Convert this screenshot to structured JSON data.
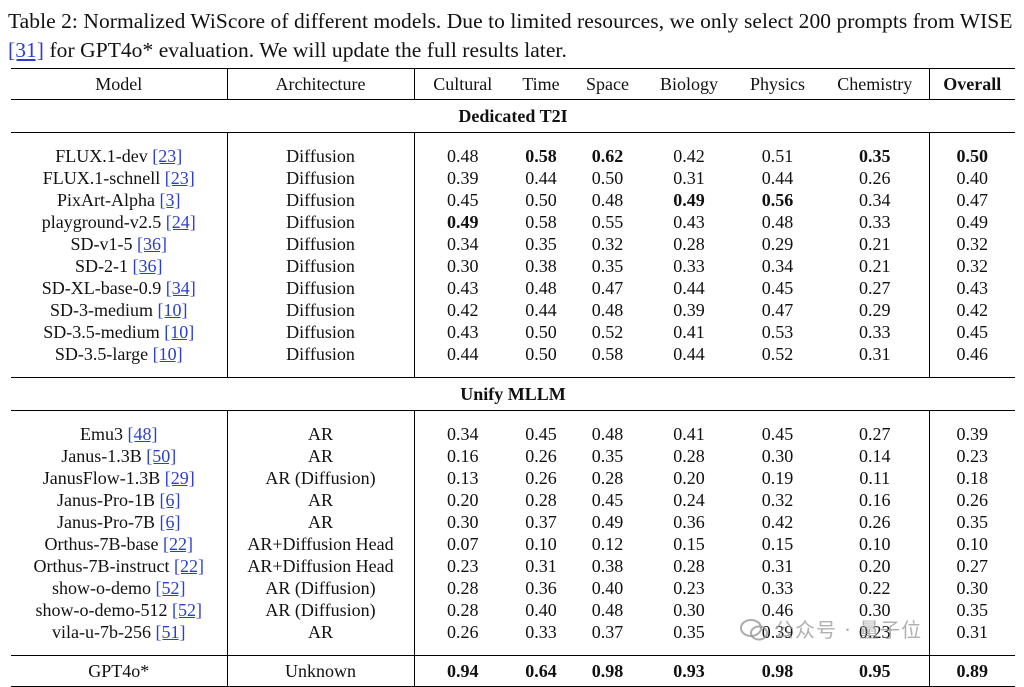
{
  "caption": {
    "label": "Table 2:",
    "text_before_ref": "Normalized WiScore of different models.  Due to limited resources, we only select 200 prompts from WISE",
    "ref": "[31]",
    "text_after_ref": "for GPT4o* evaluation. We will update the full results later."
  },
  "columns": [
    "Model",
    "Architecture",
    "Cultural",
    "Time",
    "Space",
    "Biology",
    "Physics",
    "Chemistry",
    "Overall"
  ],
  "sections": [
    {
      "title": "Dedicated T2I",
      "rows": [
        {
          "model": "FLUX.1-dev",
          "ref": "[23]",
          "arch": "Diffusion",
          "vals": [
            "0.48",
            "0.58",
            "0.62",
            "0.42",
            "0.51",
            "0.35",
            "0.50"
          ],
          "bold": [
            false,
            true,
            true,
            false,
            false,
            true,
            true
          ]
        },
        {
          "model": "FLUX.1-schnell",
          "ref": "[23]",
          "arch": "Diffusion",
          "vals": [
            "0.39",
            "0.44",
            "0.50",
            "0.31",
            "0.44",
            "0.26",
            "0.40"
          ],
          "bold": [
            false,
            false,
            false,
            false,
            false,
            false,
            false
          ]
        },
        {
          "model": "PixArt-Alpha",
          "ref": "[3]",
          "arch": "Diffusion",
          "vals": [
            "0.45",
            "0.50",
            "0.48",
            "0.49",
            "0.56",
            "0.34",
            "0.47"
          ],
          "bold": [
            false,
            false,
            false,
            true,
            true,
            false,
            false
          ]
        },
        {
          "model": "playground-v2.5",
          "ref": "[24]",
          "arch": "Diffusion",
          "vals": [
            "0.49",
            "0.58",
            "0.55",
            "0.43",
            "0.48",
            "0.33",
            "0.49"
          ],
          "bold": [
            true,
            false,
            false,
            false,
            false,
            false,
            false
          ]
        },
        {
          "model": "SD-v1-5",
          "ref": "[36]",
          "arch": "Diffusion",
          "vals": [
            "0.34",
            "0.35",
            "0.32",
            "0.28",
            "0.29",
            "0.21",
            "0.32"
          ],
          "bold": [
            false,
            false,
            false,
            false,
            false,
            false,
            false
          ]
        },
        {
          "model": "SD-2-1",
          "ref": "[36]",
          "arch": "Diffusion",
          "vals": [
            "0.30",
            "0.38",
            "0.35",
            "0.33",
            "0.34",
            "0.21",
            "0.32"
          ],
          "bold": [
            false,
            false,
            false,
            false,
            false,
            false,
            false
          ]
        },
        {
          "model": "SD-XL-base-0.9",
          "ref": "[34]",
          "arch": "Diffusion",
          "vals": [
            "0.43",
            "0.48",
            "0.47",
            "0.44",
            "0.45",
            "0.27",
            "0.43"
          ],
          "bold": [
            false,
            false,
            false,
            false,
            false,
            false,
            false
          ]
        },
        {
          "model": "SD-3-medium",
          "ref": "[10]",
          "arch": "Diffusion",
          "vals": [
            "0.42",
            "0.44",
            "0.48",
            "0.39",
            "0.47",
            "0.29",
            "0.42"
          ],
          "bold": [
            false,
            false,
            false,
            false,
            false,
            false,
            false
          ]
        },
        {
          "model": "SD-3.5-medium",
          "ref": "[10]",
          "arch": "Diffusion",
          "vals": [
            "0.43",
            "0.50",
            "0.52",
            "0.41",
            "0.53",
            "0.33",
            "0.45"
          ],
          "bold": [
            false,
            false,
            false,
            false,
            false,
            false,
            false
          ]
        },
        {
          "model": "SD-3.5-large",
          "ref": "[10]",
          "arch": "Diffusion",
          "vals": [
            "0.44",
            "0.50",
            "0.58",
            "0.44",
            "0.52",
            "0.31",
            "0.46"
          ],
          "bold": [
            false,
            false,
            false,
            false,
            false,
            false,
            false
          ]
        }
      ]
    },
    {
      "title": "Unify MLLM",
      "rows": [
        {
          "model": "Emu3",
          "ref": "[48]",
          "arch": "AR",
          "vals": [
            "0.34",
            "0.45",
            "0.48",
            "0.41",
            "0.45",
            "0.27",
            "0.39"
          ],
          "bold": [
            false,
            false,
            false,
            false,
            false,
            false,
            false
          ]
        },
        {
          "model": "Janus-1.3B",
          "ref": "[50]",
          "arch": "AR",
          "vals": [
            "0.16",
            "0.26",
            "0.35",
            "0.28",
            "0.30",
            "0.14",
            "0.23"
          ],
          "bold": [
            false,
            false,
            false,
            false,
            false,
            false,
            false
          ]
        },
        {
          "model": "JanusFlow-1.3B",
          "ref": "[29]",
          "arch": "AR (Diffusion)",
          "vals": [
            "0.13",
            "0.26",
            "0.28",
            "0.20",
            "0.19",
            "0.11",
            "0.18"
          ],
          "bold": [
            false,
            false,
            false,
            false,
            false,
            false,
            false
          ]
        },
        {
          "model": "Janus-Pro-1B",
          "ref": "[6]",
          "arch": "AR",
          "vals": [
            "0.20",
            "0.28",
            "0.45",
            "0.24",
            "0.32",
            "0.16",
            "0.26"
          ],
          "bold": [
            false,
            false,
            false,
            false,
            false,
            false,
            false
          ]
        },
        {
          "model": "Janus-Pro-7B",
          "ref": "[6]",
          "arch": "AR",
          "vals": [
            "0.30",
            "0.37",
            "0.49",
            "0.36",
            "0.42",
            "0.26",
            "0.35"
          ],
          "bold": [
            false,
            false,
            false,
            false,
            false,
            false,
            false
          ]
        },
        {
          "model": "Orthus-7B-base",
          "ref": "[22]",
          "arch": "AR+Diffusion Head",
          "vals": [
            "0.07",
            "0.10",
            "0.12",
            "0.15",
            "0.15",
            "0.10",
            "0.10"
          ],
          "bold": [
            false,
            false,
            false,
            false,
            false,
            false,
            false
          ]
        },
        {
          "model": "Orthus-7B-instruct",
          "ref": "[22]",
          "arch": "AR+Diffusion Head",
          "vals": [
            "0.23",
            "0.31",
            "0.38",
            "0.28",
            "0.31",
            "0.20",
            "0.27"
          ],
          "bold": [
            false,
            false,
            false,
            false,
            false,
            false,
            false
          ]
        },
        {
          "model": "show-o-demo",
          "ref": "[52]",
          "arch": "AR (Diffusion)",
          "vals": [
            "0.28",
            "0.36",
            "0.40",
            "0.23",
            "0.33",
            "0.22",
            "0.30"
          ],
          "bold": [
            false,
            false,
            false,
            false,
            false,
            false,
            false
          ]
        },
        {
          "model": "show-o-demo-512",
          "ref": "[52]",
          "arch": "AR (Diffusion)",
          "vals": [
            "0.28",
            "0.40",
            "0.48",
            "0.30",
            "0.46",
            "0.30",
            "0.35"
          ],
          "bold": [
            false,
            false,
            false,
            false,
            false,
            false,
            false
          ]
        },
        {
          "model": "vila-u-7b-256",
          "ref": "[51]",
          "arch": "AR",
          "vals": [
            "0.26",
            "0.33",
            "0.37",
            "0.35",
            "0.39",
            "0.23",
            "0.31"
          ],
          "bold": [
            false,
            false,
            false,
            false,
            false,
            false,
            false
          ]
        }
      ]
    }
  ],
  "final_row": {
    "model": "GPT4o*",
    "arch": "Unknown",
    "vals": [
      "0.94",
      "0.64",
      "0.98",
      "0.93",
      "0.98",
      "0.95",
      "0.89"
    ],
    "bold": [
      true,
      true,
      true,
      true,
      true,
      true,
      true
    ]
  },
  "watermark": "公众号 · 量子位",
  "accent_link_color": "#2a3fd1"
}
